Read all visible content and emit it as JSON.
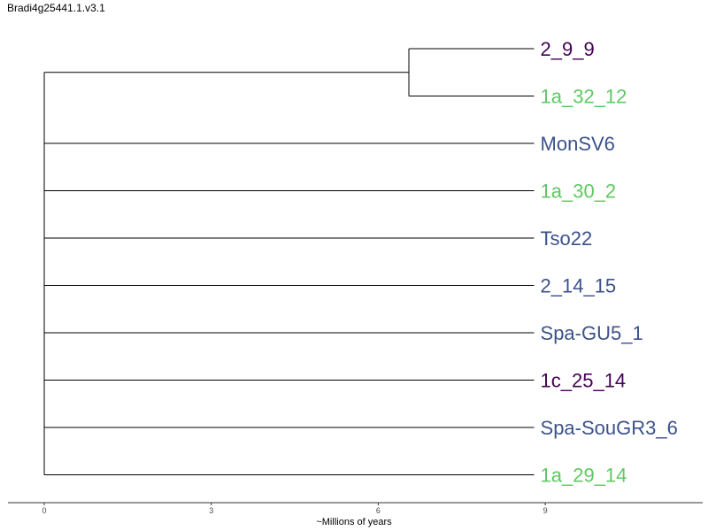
{
  "title": "Bradi4g25441.1.v3.1",
  "chart_data": {
    "type": "phylogenetic-tree",
    "xlabel": "~Millions of years",
    "xlim": [
      0,
      11.8
    ],
    "xticks": [
      0,
      3,
      6,
      9
    ],
    "tips": [
      {
        "name": "2_9_9",
        "branch_length": 8.8,
        "parent": "clade-a",
        "color": "#440154"
      },
      {
        "name": "1a_32_12",
        "branch_length": 8.8,
        "parent": "clade-a",
        "color": "#5ec962"
      },
      {
        "name": "MonSV6",
        "branch_length": 8.8,
        "parent": "root",
        "color": "#3b528b"
      },
      {
        "name": "1a_30_2",
        "branch_length": 8.8,
        "parent": "root",
        "color": "#5ec962"
      },
      {
        "name": "Tso22",
        "branch_length": 8.8,
        "parent": "root",
        "color": "#3b528b"
      },
      {
        "name": "2_14_15",
        "branch_length": 8.8,
        "parent": "root",
        "color": "#3b528b"
      },
      {
        "name": "Spa-GU5_1",
        "branch_length": 8.8,
        "parent": "root",
        "color": "#3b528b"
      },
      {
        "name": "1c_25_14",
        "branch_length": 8.8,
        "parent": "root",
        "color": "#440154"
      },
      {
        "name": "Spa-SouGR3_6",
        "branch_length": 8.8,
        "parent": "root",
        "color": "#3b528b"
      },
      {
        "name": "1a_29_14",
        "branch_length": 8.8,
        "parent": "root",
        "color": "#5ec962"
      }
    ],
    "internal_nodes": [
      {
        "name": "clade-a",
        "age": 6.55
      }
    ]
  }
}
